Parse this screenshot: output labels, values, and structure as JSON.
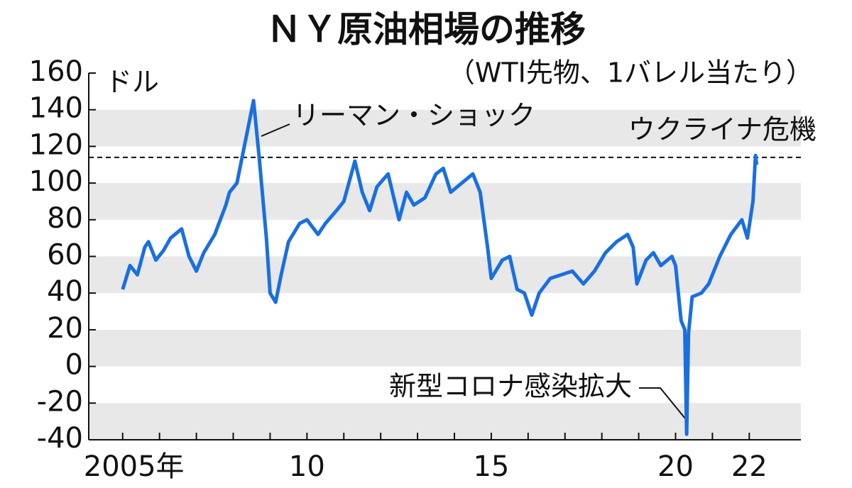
{
  "chart_data": {
    "type": "line",
    "title": "ＮＹ原油相場の推移",
    "subtitle": "（WTI先物、1バレル当たり）",
    "y_label": "ドル",
    "color": "#1a6fe0",
    "grid": "bands",
    "x": [
      2005.0,
      2005.2,
      2005.4,
      2005.6,
      2005.7,
      2005.9,
      2006.1,
      2006.3,
      2006.6,
      2006.8,
      2007.0,
      2007.2,
      2007.5,
      2007.8,
      2007.9,
      2008.1,
      2008.3,
      2008.5,
      2008.55,
      2008.7,
      2008.9,
      2009.0,
      2009.15,
      2009.3,
      2009.5,
      2009.8,
      2010.0,
      2010.3,
      2010.5,
      2010.8,
      2011.0,
      2011.3,
      2011.5,
      2011.7,
      2011.9,
      2012.2,
      2012.5,
      2012.7,
      2012.9,
      2013.2,
      2013.5,
      2013.7,
      2013.9,
      2014.2,
      2014.5,
      2014.7,
      2014.9,
      2015.0,
      2015.3,
      2015.5,
      2015.7,
      2015.9,
      2016.1,
      2016.3,
      2016.6,
      2016.9,
      2017.2,
      2017.5,
      2017.8,
      2018.1,
      2018.4,
      2018.7,
      2018.85,
      2018.95,
      2019.2,
      2019.4,
      2019.6,
      2019.9,
      2020.0,
      2020.15,
      2020.25,
      2020.3,
      2020.35,
      2020.45,
      2020.7,
      2020.9,
      2021.2,
      2021.5,
      2021.8,
      2021.95,
      2022.1,
      2022.17,
      2022.2
    ],
    "values": [
      42,
      55,
      50,
      65,
      68,
      58,
      63,
      70,
      75,
      60,
      52,
      62,
      72,
      88,
      95,
      100,
      120,
      140,
      145,
      115,
      70,
      40,
      35,
      50,
      68,
      78,
      80,
      72,
      78,
      85,
      90,
      112,
      95,
      85,
      98,
      105,
      80,
      95,
      88,
      92,
      105,
      108,
      95,
      100,
      105,
      95,
      65,
      48,
      58,
      60,
      42,
      40,
      28,
      40,
      48,
      50,
      52,
      45,
      52,
      62,
      68,
      72,
      65,
      45,
      58,
      62,
      55,
      60,
      55,
      25,
      20,
      -37,
      18,
      38,
      40,
      45,
      60,
      72,
      80,
      70,
      90,
      115,
      110
    ],
    "xlim": [
      2004.08,
      2023.4
    ],
    "xticks": [
      {
        "value": 2005,
        "label": "2005年"
      },
      {
        "value": 2010,
        "label": "10"
      },
      {
        "value": 2015,
        "label": "15"
      },
      {
        "value": 2020,
        "label": "20"
      },
      {
        "value": 2022,
        "label": "22"
      }
    ],
    "xminorticks": [
      2006,
      2007,
      2008,
      2009,
      2011,
      2012,
      2013,
      2014,
      2016,
      2017,
      2018,
      2019,
      2021
    ],
    "ylim": [
      -40,
      160
    ],
    "yticks": [
      -40,
      -20,
      0,
      20,
      40,
      60,
      80,
      100,
      120,
      140,
      160
    ],
    "reference_line": 114,
    "annotations": [
      "リーマン・ショック",
      "ウクライナ危機",
      "新型コロナ感染拡大"
    ]
  }
}
